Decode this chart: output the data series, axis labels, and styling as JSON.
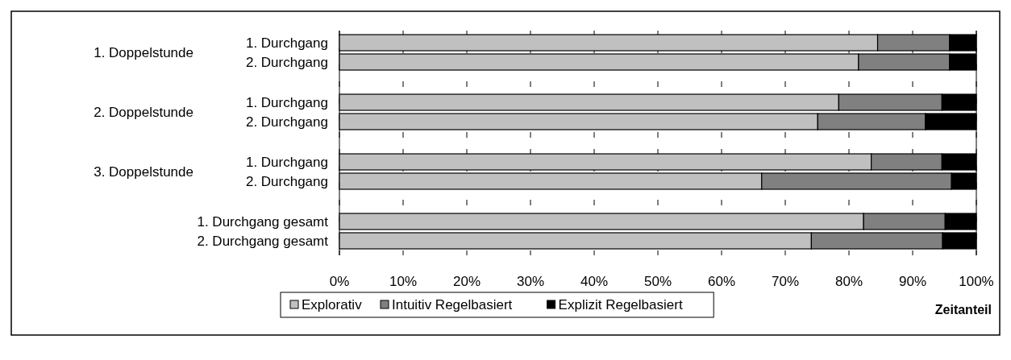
{
  "chart_data": {
    "type": "bar",
    "orientation": "horizontal",
    "stacked": true,
    "categories": [
      "1. Durchgang",
      "2. Durchgang",
      "1. Durchgang",
      "2. Durchgang",
      "1. Durchgang",
      "2. Durchgang",
      "1. Durchgang gesamt",
      "2. Durchgang gesamt"
    ],
    "series": [
      {
        "name": "Explorativ",
        "color": "#c0c0c0",
        "values": [
          84.5,
          81.5,
          78.4,
          75.1,
          83.5,
          66.3,
          82.3,
          74.1
        ]
      },
      {
        "name": "Intuitiv Regelbasiert",
        "color": "#808080",
        "values": [
          11.3,
          14.3,
          16.2,
          16.9,
          11.1,
          29.8,
          12.8,
          20.6
        ]
      },
      {
        "name": "Explizit Regelbasiert",
        "color": "#000000",
        "values": [
          4.2,
          4.2,
          5.4,
          8.0,
          5.4,
          3.9,
          4.9,
          5.3
        ]
      }
    ],
    "annotations": [
      "1. Doppelstunde",
      "2. Doppelstunde",
      "3. Doppelstunde"
    ],
    "xlabel": "Zeitanteil",
    "xlim": [
      0,
      100
    ],
    "xticks": [
      {
        "value": 0,
        "label": "0%"
      },
      {
        "value": 10,
        "label": "10%"
      },
      {
        "value": 20,
        "label": "20%"
      },
      {
        "value": 30,
        "label": "30%"
      },
      {
        "value": 40,
        "label": "40%"
      },
      {
        "value": 50,
        "label": "50%"
      },
      {
        "value": 60,
        "label": "60%"
      },
      {
        "value": 70,
        "label": "70%"
      },
      {
        "value": 80,
        "label": "80%"
      },
      {
        "value": 90,
        "label": "90%"
      },
      {
        "value": 100,
        "label": "100%"
      }
    ],
    "grid": "x",
    "legend": "bottom"
  }
}
